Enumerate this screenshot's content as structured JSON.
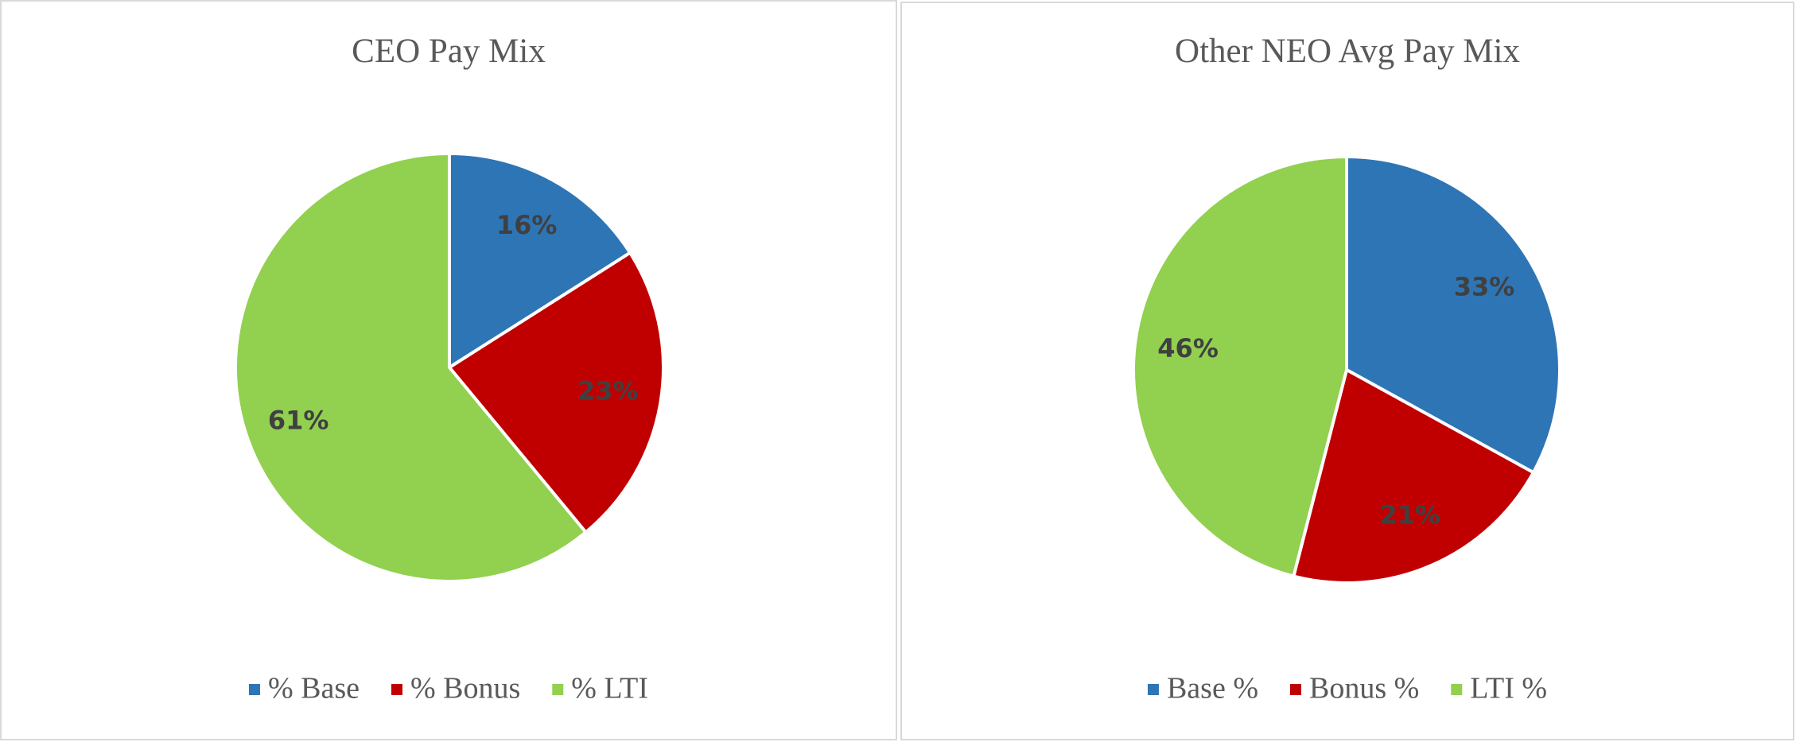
{
  "chart_data": [
    {
      "type": "pie",
      "title": "CEO Pay Mix",
      "categories": [
        "% Base",
        "% Bonus",
        "% LTI"
      ],
      "values": [
        16,
        23,
        61
      ],
      "value_labels": [
        "16%",
        "23%",
        "61%"
      ],
      "colors": [
        "#2e75b6",
        "#c00000",
        "#92d050"
      ],
      "legend": "bottom"
    },
    {
      "type": "pie",
      "title": "Other NEO Avg Pay Mix",
      "categories": [
        "Base %",
        "Bonus %",
        "LTI %"
      ],
      "values": [
        33,
        21,
        46
      ],
      "value_labels": [
        "33%",
        "21%",
        "46%"
      ],
      "colors": [
        "#2e75b6",
        "#c00000",
        "#92d050"
      ],
      "legend": "bottom"
    }
  ]
}
